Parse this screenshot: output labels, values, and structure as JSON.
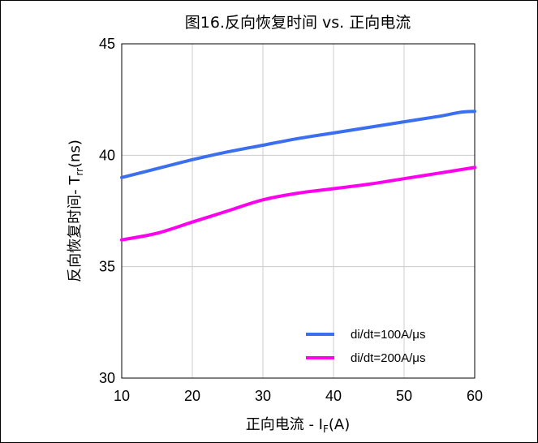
{
  "chart_data": {
    "type": "line",
    "title": "图16.反向恢复时间 vs. 正向电流",
    "xlabel": {
      "main": "正向电流 - I",
      "sub": "F",
      "unit": "(A)"
    },
    "ylabel": {
      "main": "反向恢复时间- T",
      "sub": "rr",
      "unit": "(ns)"
    },
    "xlim": [
      10,
      60
    ],
    "ylim": [
      30,
      45
    ],
    "xticks": [
      10,
      20,
      30,
      40,
      50,
      60
    ],
    "yticks": [
      30,
      35,
      40,
      45
    ],
    "grid": true,
    "legend_position": "bottom-right",
    "series": [
      {
        "name": "di/dt=100A/μs",
        "color": "#3b6ff0",
        "x": [
          10,
          15,
          20,
          25,
          30,
          35,
          40,
          45,
          50,
          55,
          58,
          60
        ],
        "y": [
          39.0,
          39.4,
          39.8,
          40.15,
          40.45,
          40.75,
          41.0,
          41.25,
          41.5,
          41.75,
          41.93,
          41.97
        ]
      },
      {
        "name": "di/dt=200A/μs",
        "color": "#ff00ee",
        "x": [
          10,
          15,
          20,
          25,
          30,
          35,
          40,
          45,
          50,
          55,
          60
        ],
        "y": [
          36.2,
          36.5,
          37.0,
          37.5,
          38.0,
          38.3,
          38.5,
          38.7,
          38.95,
          39.2,
          39.45
        ]
      }
    ]
  }
}
